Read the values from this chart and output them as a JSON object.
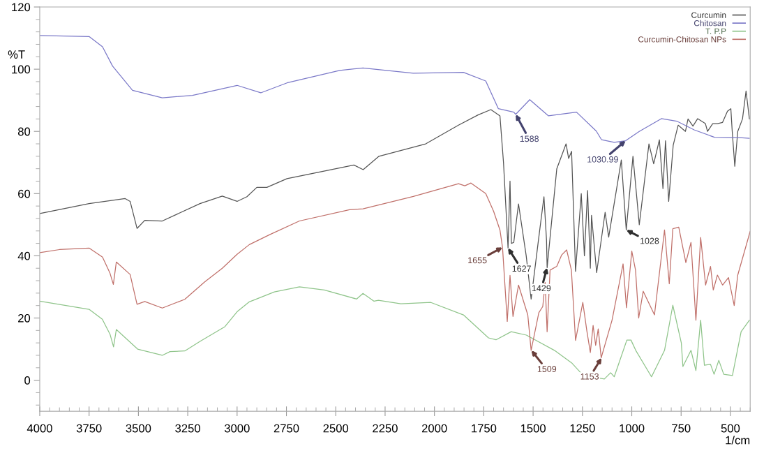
{
  "chart_data": {
    "type": "line",
    "xlabel": "1/cm",
    "ylabel": "%T",
    "xlim": [
      4000,
      400
    ],
    "xticks": [
      4000,
      3750,
      3500,
      3250,
      3000,
      2750,
      2500,
      2250,
      2000,
      1750,
      1500,
      1250,
      1000,
      750,
      500
    ],
    "ylim": [
      -10,
      120
    ],
    "yticks": [
      0,
      20,
      40,
      60,
      80,
      100,
      120
    ],
    "grid": false,
    "legend": "top right",
    "marker": "none",
    "line_style": "solid",
    "series": [
      {
        "name": "Curcumin",
        "color": "#555555",
        "x": [
          4000,
          3750,
          3567,
          3542,
          3507,
          3468,
          3379,
          3188,
          3075,
          3000,
          2950,
          2900,
          2849,
          2747,
          2408,
          2361,
          2281,
          2044,
          1878,
          1779,
          1714,
          1668,
          1650,
          1627,
          1617,
          1610,
          1598,
          1574,
          1535,
          1510,
          1471,
          1445,
          1432,
          1429,
          1380,
          1333,
          1320,
          1305,
          1285,
          1256,
          1240,
          1224,
          1210,
          1204,
          1178,
          1135,
          1117,
          1053,
          1028,
          994,
          975,
          962,
          913,
          889,
          860,
          842,
          829,
          813,
          790,
          765,
          728,
          715,
          690,
          666,
          627,
          616,
          590,
          566,
          540,
          515,
          498,
          491,
          478,
          463,
          439,
          421,
          404
        ],
        "values": [
          53.6,
          56.8,
          58.4,
          57.5,
          48.8,
          51.4,
          51.2,
          56.8,
          59.2,
          57.5,
          59,
          62,
          62,
          64.8,
          69.2,
          67.7,
          72,
          76,
          82,
          85.3,
          87,
          85,
          70,
          42.5,
          64,
          44,
          44.3,
          56.7,
          40,
          26.1,
          46,
          59,
          45,
          36.2,
          68,
          76,
          71.3,
          73.6,
          35,
          60,
          40,
          61,
          36,
          53,
          34.6,
          54,
          46,
          70.8,
          48.3,
          72,
          59,
          50,
          76,
          69.6,
          77.3,
          61.6,
          77,
          57.5,
          75.6,
          82,
          80,
          84,
          81.7,
          84.1,
          82.5,
          80,
          82.5,
          82.5,
          82.9,
          86.5,
          87.3,
          80,
          68.8,
          80,
          84,
          93,
          84
        ]
      },
      {
        "name": "Chitosan",
        "color": "#7b79c8",
        "x": [
          4000,
          3750,
          3682,
          3631,
          3530,
          3379,
          3226,
          3000,
          2880,
          2747,
          2480,
          2362,
          2107,
          1853,
          1740,
          1676,
          1598,
          1588,
          1517,
          1422,
          1280,
          1180,
          1153,
          1089,
          1031,
          962,
          850,
          772,
          684,
          581,
          453,
          404
        ],
        "values": [
          110.8,
          110.5,
          107.2,
          101,
          93.2,
          90.8,
          91.6,
          94.8,
          92.4,
          95.6,
          99.6,
          100.4,
          98.7,
          99,
          96.2,
          87.3,
          86.2,
          85.5,
          90.2,
          85,
          86.2,
          80.1,
          77.3,
          76.5,
          77,
          80,
          84.1,
          83.3,
          80.5,
          78.1,
          78,
          77.8
        ]
      },
      {
        "name": "T. P.P",
        "color": "#8fc48a",
        "x": [
          4000,
          3750,
          3683,
          3644,
          3626,
          3612,
          3504,
          3379,
          3340,
          3265,
          3188,
          3062,
          3000,
          2938,
          2811,
          2684,
          2558,
          2394,
          2362,
          2306,
          2284,
          2170,
          2018,
          1853,
          1726,
          1688,
          1611,
          1534,
          1392,
          1305,
          1240,
          1204,
          1139,
          1107,
          1089,
          1025,
          1004,
          980,
          900,
          834,
          792,
          749,
          741,
          700,
          675,
          651,
          632,
          601,
          583,
          559,
          534,
          490,
          446,
          404
        ],
        "values": [
          25.4,
          22.8,
          19.6,
          14.8,
          10.7,
          16.3,
          10,
          8,
          9.2,
          9.4,
          12.5,
          17.2,
          22,
          25.2,
          28.4,
          30,
          29,
          26.1,
          27.9,
          25.4,
          25.7,
          24.6,
          25,
          21,
          13.6,
          13,
          15.6,
          14.5,
          9.6,
          5.6,
          1.1,
          1.1,
          0.4,
          2.4,
          1.1,
          12.9,
          12.9,
          9.6,
          1.1,
          9.6,
          24.1,
          12,
          4.4,
          9.6,
          3.1,
          19.3,
          4.8,
          5.1,
          1.9,
          6.4,
          1.9,
          1.5,
          15.6,
          19.3
        ]
      },
      {
        "name": "Curcumin-Chitosan NPs",
        "color": "#c0706a",
        "x": [
          4000,
          3900,
          3750,
          3682,
          3644,
          3627,
          3612,
          3542,
          3507,
          3468,
          3379,
          3265,
          3164,
          3075,
          3000,
          2938,
          2835,
          2684,
          2430,
          2362,
          2107,
          1878,
          1846,
          1815,
          1740,
          1700,
          1668,
          1655,
          1631,
          1617,
          1602,
          1574,
          1527,
          1510,
          1471,
          1451,
          1439,
          1429,
          1414,
          1380,
          1355,
          1330,
          1306,
          1285,
          1248,
          1228,
          1210,
          1196,
          1183,
          1170,
          1155,
          1100,
          1044,
          1027,
          1000,
          981,
          965,
          942,
          885,
          834,
          810,
          792,
          762,
          726,
          700,
          675,
          651,
          626,
          601,
          587,
          566,
          540,
          510,
          481,
          463,
          400
        ],
        "values": [
          41,
          42,
          42.5,
          39.6,
          34.4,
          30.8,
          38,
          34,
          24.4,
          25.3,
          23.2,
          26,
          31.6,
          36,
          40.5,
          43.6,
          46.8,
          51.2,
          54.8,
          55.1,
          59.1,
          63.2,
          62.5,
          63.4,
          60,
          54.3,
          48.3,
          42.7,
          18.9,
          33.7,
          20.5,
          30.6,
          21,
          9.6,
          21.7,
          23.7,
          31.4,
          15.6,
          35.4,
          36.6,
          40.3,
          41.9,
          35.4,
          12.8,
          25,
          16,
          8.9,
          17.6,
          11.2,
          16.5,
          7.2,
          19.3,
          37.4,
          23.3,
          41.5,
          35.4,
          20,
          28.6,
          21,
          48.3,
          31,
          48.7,
          49.2,
          37.8,
          44.3,
          19.3,
          45.9,
          30.6,
          36.6,
          29,
          33.8,
          30.6,
          33,
          24,
          33.8,
          47.9
        ]
      }
    ],
    "annotations": [
      {
        "text": "1588",
        "x": 1588,
        "y": 85.5
      },
      {
        "text": "1030.99",
        "x": 1031,
        "y": 77
      },
      {
        "text": "1627",
        "x": 1627,
        "y": 42.5
      },
      {
        "text": "1429",
        "x": 1429,
        "y": 36.2
      },
      {
        "text": "1028",
        "x": 1028,
        "y": 48.3
      },
      {
        "text": "1655",
        "x": 1655,
        "y": 42.7
      },
      {
        "text": "1509",
        "x": 1509,
        "y": 9.6
      },
      {
        "text": "1153",
        "x": 1153,
        "y": 7.2
      }
    ]
  }
}
